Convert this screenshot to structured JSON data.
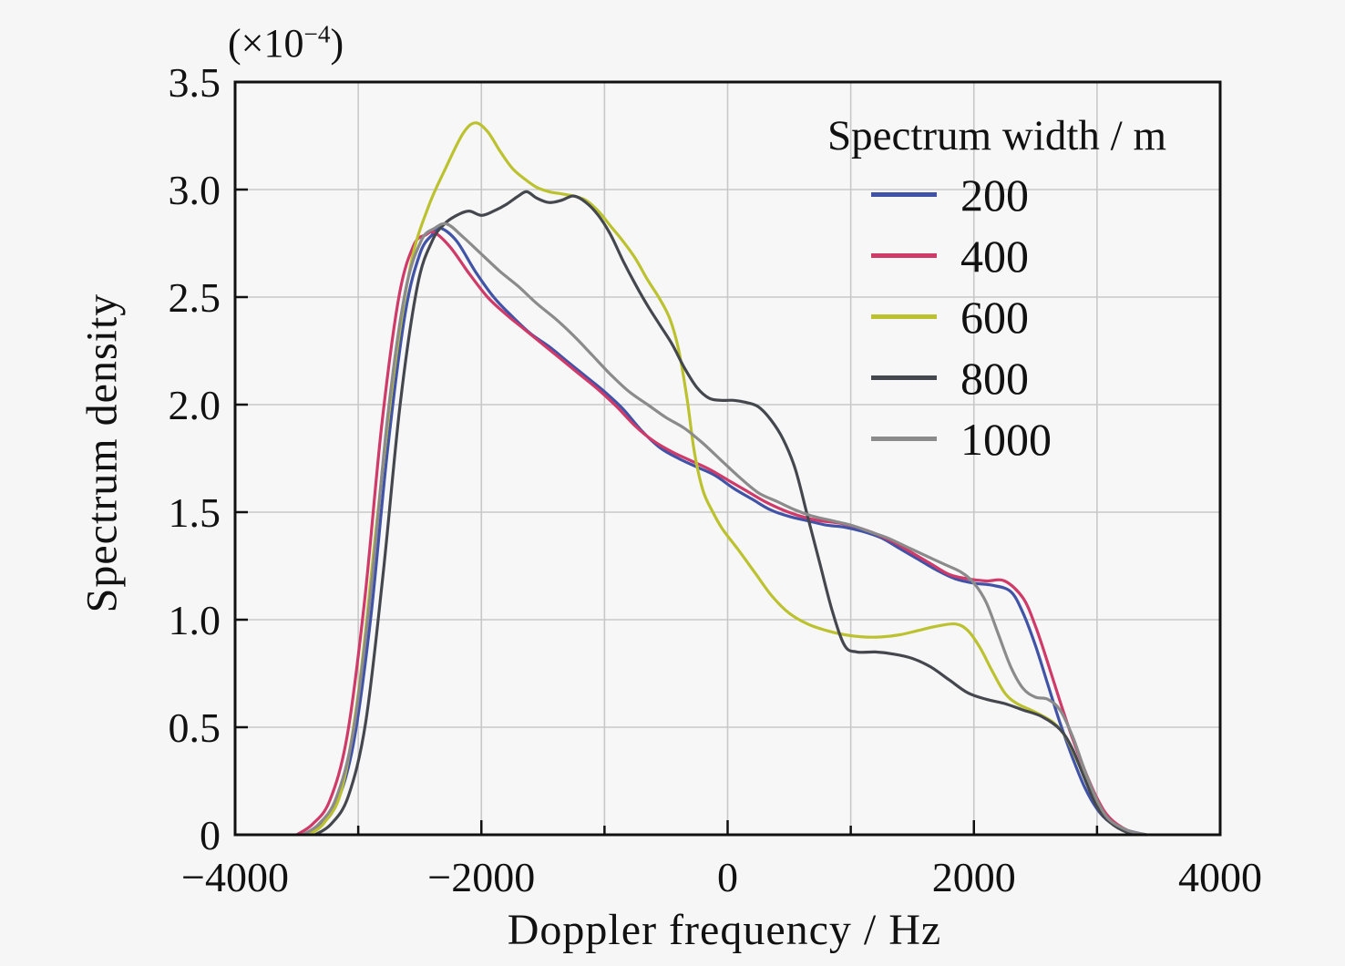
{
  "figure": {
    "background_color": "#f6f6f6",
    "plot_background_color": "#f7f7f7",
    "frame_color": "#111111",
    "grid_color": "#c8c8c8",
    "text_color": "#111111"
  },
  "chart_data": {
    "type": "line",
    "title": "",
    "xlabel": "Doppler frequency / Hz",
    "ylabel": "Spectrum density",
    "y_multiplier": {
      "prefix": "(×10",
      "exponent": "−4",
      "suffix": ")"
    },
    "xlim": [
      -4000,
      4000
    ],
    "ylim": [
      0,
      3.5
    ],
    "grid": {
      "x_step": 1000,
      "y_step": 0.5,
      "visible": true
    },
    "xticks": [
      {
        "value": -4000,
        "label": "−4000"
      },
      {
        "value": -2000,
        "label": "−2000"
      },
      {
        "value": 0,
        "label": "0"
      },
      {
        "value": 2000,
        "label": "2000"
      },
      {
        "value": 4000,
        "label": "4000"
      }
    ],
    "yticks": [
      {
        "value": 0,
        "label": "0"
      },
      {
        "value": 0.5,
        "label": "0.5"
      },
      {
        "value": 1.0,
        "label": "1.0"
      },
      {
        "value": 1.5,
        "label": "1.5"
      },
      {
        "value": 2.0,
        "label": "2.0"
      },
      {
        "value": 2.5,
        "label": "2.5"
      },
      {
        "value": 3.0,
        "label": "3.0"
      },
      {
        "value": 3.5,
        "label": "3.5"
      }
    ],
    "legend": {
      "title": "Spectrum width / m",
      "position": "top-right"
    },
    "series": [
      {
        "name": "200",
        "color": "#4053a6",
        "points": [
          [
            -3450,
            0
          ],
          [
            -3320,
            0.04
          ],
          [
            -3180,
            0.14
          ],
          [
            -3040,
            0.42
          ],
          [
            -2900,
            1.0
          ],
          [
            -2760,
            1.8
          ],
          [
            -2620,
            2.42
          ],
          [
            -2500,
            2.7
          ],
          [
            -2400,
            2.79
          ],
          [
            -2330,
            2.82
          ],
          [
            -2200,
            2.76
          ],
          [
            -2050,
            2.62
          ],
          [
            -1900,
            2.5
          ],
          [
            -1750,
            2.41
          ],
          [
            -1600,
            2.33
          ],
          [
            -1450,
            2.27
          ],
          [
            -1300,
            2.2
          ],
          [
            -1150,
            2.13
          ],
          [
            -1000,
            2.06
          ],
          [
            -850,
            1.98
          ],
          [
            -700,
            1.88
          ],
          [
            -550,
            1.8
          ],
          [
            -400,
            1.75
          ],
          [
            -250,
            1.71
          ],
          [
            -100,
            1.67
          ],
          [
            50,
            1.61
          ],
          [
            200,
            1.56
          ],
          [
            350,
            1.51
          ],
          [
            500,
            1.48
          ],
          [
            650,
            1.46
          ],
          [
            800,
            1.44
          ],
          [
            950,
            1.43
          ],
          [
            1100,
            1.41
          ],
          [
            1250,
            1.38
          ],
          [
            1400,
            1.33
          ],
          [
            1550,
            1.28
          ],
          [
            1700,
            1.23
          ],
          [
            1850,
            1.19
          ],
          [
            2000,
            1.17
          ],
          [
            2150,
            1.16
          ],
          [
            2300,
            1.13
          ],
          [
            2400,
            1.03
          ],
          [
            2500,
            0.88
          ],
          [
            2600,
            0.7
          ],
          [
            2700,
            0.52
          ],
          [
            2800,
            0.36
          ],
          [
            2900,
            0.22
          ],
          [
            3000,
            0.12
          ],
          [
            3100,
            0.06
          ],
          [
            3250,
            0.02
          ],
          [
            3400,
            0
          ]
        ]
      },
      {
        "name": "400",
        "color": "#cf3a68",
        "points": [
          [
            -3500,
            0
          ],
          [
            -3370,
            0.05
          ],
          [
            -3230,
            0.16
          ],
          [
            -3090,
            0.46
          ],
          [
            -2950,
            1.08
          ],
          [
            -2810,
            1.9
          ],
          [
            -2670,
            2.5
          ],
          [
            -2550,
            2.74
          ],
          [
            -2450,
            2.79
          ],
          [
            -2380,
            2.8
          ],
          [
            -2250,
            2.73
          ],
          [
            -2100,
            2.61
          ],
          [
            -1950,
            2.5
          ],
          [
            -1800,
            2.42
          ],
          [
            -1650,
            2.35
          ],
          [
            -1500,
            2.28
          ],
          [
            -1350,
            2.21
          ],
          [
            -1200,
            2.14
          ],
          [
            -1050,
            2.07
          ],
          [
            -900,
            1.99
          ],
          [
            -750,
            1.9
          ],
          [
            -600,
            1.83
          ],
          [
            -450,
            1.78
          ],
          [
            -300,
            1.74
          ],
          [
            -150,
            1.7
          ],
          [
            0,
            1.65
          ],
          [
            150,
            1.6
          ],
          [
            300,
            1.55
          ],
          [
            450,
            1.51
          ],
          [
            600,
            1.48
          ],
          [
            750,
            1.46
          ],
          [
            900,
            1.45
          ],
          [
            1050,
            1.43
          ],
          [
            1200,
            1.4
          ],
          [
            1350,
            1.36
          ],
          [
            1500,
            1.31
          ],
          [
            1650,
            1.26
          ],
          [
            1800,
            1.21
          ],
          [
            1950,
            1.19
          ],
          [
            2100,
            1.18
          ],
          [
            2250,
            1.18
          ],
          [
            2400,
            1.1
          ],
          [
            2500,
            0.97
          ],
          [
            2600,
            0.8
          ],
          [
            2700,
            0.62
          ],
          [
            2800,
            0.45
          ],
          [
            2900,
            0.3
          ],
          [
            3000,
            0.17
          ],
          [
            3100,
            0.08
          ],
          [
            3250,
            0.02
          ],
          [
            3400,
            0
          ]
        ]
      },
      {
        "name": "600",
        "color": "#bcc22f",
        "points": [
          [
            -3400,
            0
          ],
          [
            -3270,
            0.06
          ],
          [
            -3130,
            0.22
          ],
          [
            -2990,
            0.7
          ],
          [
            -2850,
            1.45
          ],
          [
            -2710,
            2.15
          ],
          [
            -2570,
            2.66
          ],
          [
            -2430,
            2.92
          ],
          [
            -2290,
            3.1
          ],
          [
            -2150,
            3.26
          ],
          [
            -2050,
            3.31
          ],
          [
            -1950,
            3.27
          ],
          [
            -1850,
            3.18
          ],
          [
            -1750,
            3.1
          ],
          [
            -1650,
            3.05
          ],
          [
            -1550,
            3.01
          ],
          [
            -1450,
            2.99
          ],
          [
            -1350,
            2.98
          ],
          [
            -1250,
            2.97
          ],
          [
            -1150,
            2.95
          ],
          [
            -1050,
            2.9
          ],
          [
            -950,
            2.83
          ],
          [
            -850,
            2.76
          ],
          [
            -750,
            2.68
          ],
          [
            -650,
            2.58
          ],
          [
            -550,
            2.49
          ],
          [
            -470,
            2.4
          ],
          [
            -400,
            2.26
          ],
          [
            -330,
            2.03
          ],
          [
            -270,
            1.78
          ],
          [
            -200,
            1.6
          ],
          [
            -120,
            1.5
          ],
          [
            -40,
            1.42
          ],
          [
            80,
            1.33
          ],
          [
            220,
            1.22
          ],
          [
            360,
            1.11
          ],
          [
            500,
            1.03
          ],
          [
            650,
            0.98
          ],
          [
            800,
            0.95
          ],
          [
            950,
            0.93
          ],
          [
            1100,
            0.92
          ],
          [
            1250,
            0.92
          ],
          [
            1400,
            0.93
          ],
          [
            1550,
            0.95
          ],
          [
            1700,
            0.97
          ],
          [
            1850,
            0.98
          ],
          [
            1950,
            0.95
          ],
          [
            2050,
            0.87
          ],
          [
            2150,
            0.76
          ],
          [
            2250,
            0.66
          ],
          [
            2350,
            0.61
          ],
          [
            2500,
            0.57
          ],
          [
            2650,
            0.52
          ],
          [
            2750,
            0.45
          ],
          [
            2850,
            0.33
          ],
          [
            2950,
            0.2
          ],
          [
            3050,
            0.1
          ],
          [
            3150,
            0.04
          ],
          [
            3300,
            0
          ]
        ]
      },
      {
        "name": "800",
        "color": "#44484e",
        "points": [
          [
            -3350,
            0
          ],
          [
            -3220,
            0.05
          ],
          [
            -3080,
            0.18
          ],
          [
            -2940,
            0.52
          ],
          [
            -2800,
            1.2
          ],
          [
            -2660,
            2.0
          ],
          [
            -2520,
            2.55
          ],
          [
            -2400,
            2.76
          ],
          [
            -2300,
            2.84
          ],
          [
            -2200,
            2.88
          ],
          [
            -2100,
            2.9
          ],
          [
            -2000,
            2.88
          ],
          [
            -1900,
            2.9
          ],
          [
            -1800,
            2.93
          ],
          [
            -1700,
            2.97
          ],
          [
            -1630,
            2.99
          ],
          [
            -1550,
            2.96
          ],
          [
            -1450,
            2.94
          ],
          [
            -1350,
            2.95
          ],
          [
            -1250,
            2.97
          ],
          [
            -1150,
            2.94
          ],
          [
            -1050,
            2.88
          ],
          [
            -950,
            2.79
          ],
          [
            -850,
            2.67
          ],
          [
            -750,
            2.56
          ],
          [
            -650,
            2.46
          ],
          [
            -550,
            2.37
          ],
          [
            -450,
            2.28
          ],
          [
            -350,
            2.17
          ],
          [
            -250,
            2.08
          ],
          [
            -150,
            2.03
          ],
          [
            -50,
            2.02
          ],
          [
            50,
            2.02
          ],
          [
            150,
            2.01
          ],
          [
            250,
            1.99
          ],
          [
            350,
            1.93
          ],
          [
            450,
            1.84
          ],
          [
            550,
            1.7
          ],
          [
            650,
            1.48
          ],
          [
            750,
            1.26
          ],
          [
            850,
            1.04
          ],
          [
            950,
            0.88
          ],
          [
            1050,
            0.85
          ],
          [
            1200,
            0.85
          ],
          [
            1350,
            0.84
          ],
          [
            1500,
            0.82
          ],
          [
            1650,
            0.78
          ],
          [
            1800,
            0.72
          ],
          [
            1950,
            0.66
          ],
          [
            2100,
            0.63
          ],
          [
            2250,
            0.61
          ],
          [
            2400,
            0.58
          ],
          [
            2550,
            0.55
          ],
          [
            2700,
            0.49
          ],
          [
            2800,
            0.4
          ],
          [
            2900,
            0.26
          ],
          [
            3000,
            0.13
          ],
          [
            3100,
            0.06
          ],
          [
            3250,
            0.01
          ],
          [
            3400,
            0
          ]
        ]
      },
      {
        "name": "1000",
        "color": "#8b8b8b",
        "points": [
          [
            -3450,
            0
          ],
          [
            -3320,
            0.05
          ],
          [
            -3180,
            0.17
          ],
          [
            -3040,
            0.48
          ],
          [
            -2900,
            1.12
          ],
          [
            -2760,
            1.95
          ],
          [
            -2620,
            2.52
          ],
          [
            -2490,
            2.76
          ],
          [
            -2380,
            2.82
          ],
          [
            -2280,
            2.84
          ],
          [
            -2150,
            2.78
          ],
          [
            -2000,
            2.7
          ],
          [
            -1850,
            2.62
          ],
          [
            -1700,
            2.55
          ],
          [
            -1550,
            2.47
          ],
          [
            -1400,
            2.4
          ],
          [
            -1250,
            2.32
          ],
          [
            -1100,
            2.23
          ],
          [
            -950,
            2.14
          ],
          [
            -800,
            2.06
          ],
          [
            -650,
            2.0
          ],
          [
            -500,
            1.94
          ],
          [
            -350,
            1.89
          ],
          [
            -200,
            1.82
          ],
          [
            -50,
            1.74
          ],
          [
            100,
            1.66
          ],
          [
            250,
            1.59
          ],
          [
            400,
            1.55
          ],
          [
            550,
            1.51
          ],
          [
            700,
            1.48
          ],
          [
            850,
            1.46
          ],
          [
            1000,
            1.44
          ],
          [
            1150,
            1.41
          ],
          [
            1300,
            1.38
          ],
          [
            1450,
            1.34
          ],
          [
            1600,
            1.3
          ],
          [
            1750,
            1.26
          ],
          [
            1900,
            1.22
          ],
          [
            2000,
            1.17
          ],
          [
            2100,
            1.08
          ],
          [
            2200,
            0.93
          ],
          [
            2300,
            0.78
          ],
          [
            2400,
            0.68
          ],
          [
            2500,
            0.64
          ],
          [
            2600,
            0.63
          ],
          [
            2700,
            0.58
          ],
          [
            2800,
            0.46
          ],
          [
            2900,
            0.3
          ],
          [
            3000,
            0.16
          ],
          [
            3100,
            0.07
          ],
          [
            3250,
            0.02
          ],
          [
            3400,
            0
          ]
        ]
      }
    ]
  }
}
